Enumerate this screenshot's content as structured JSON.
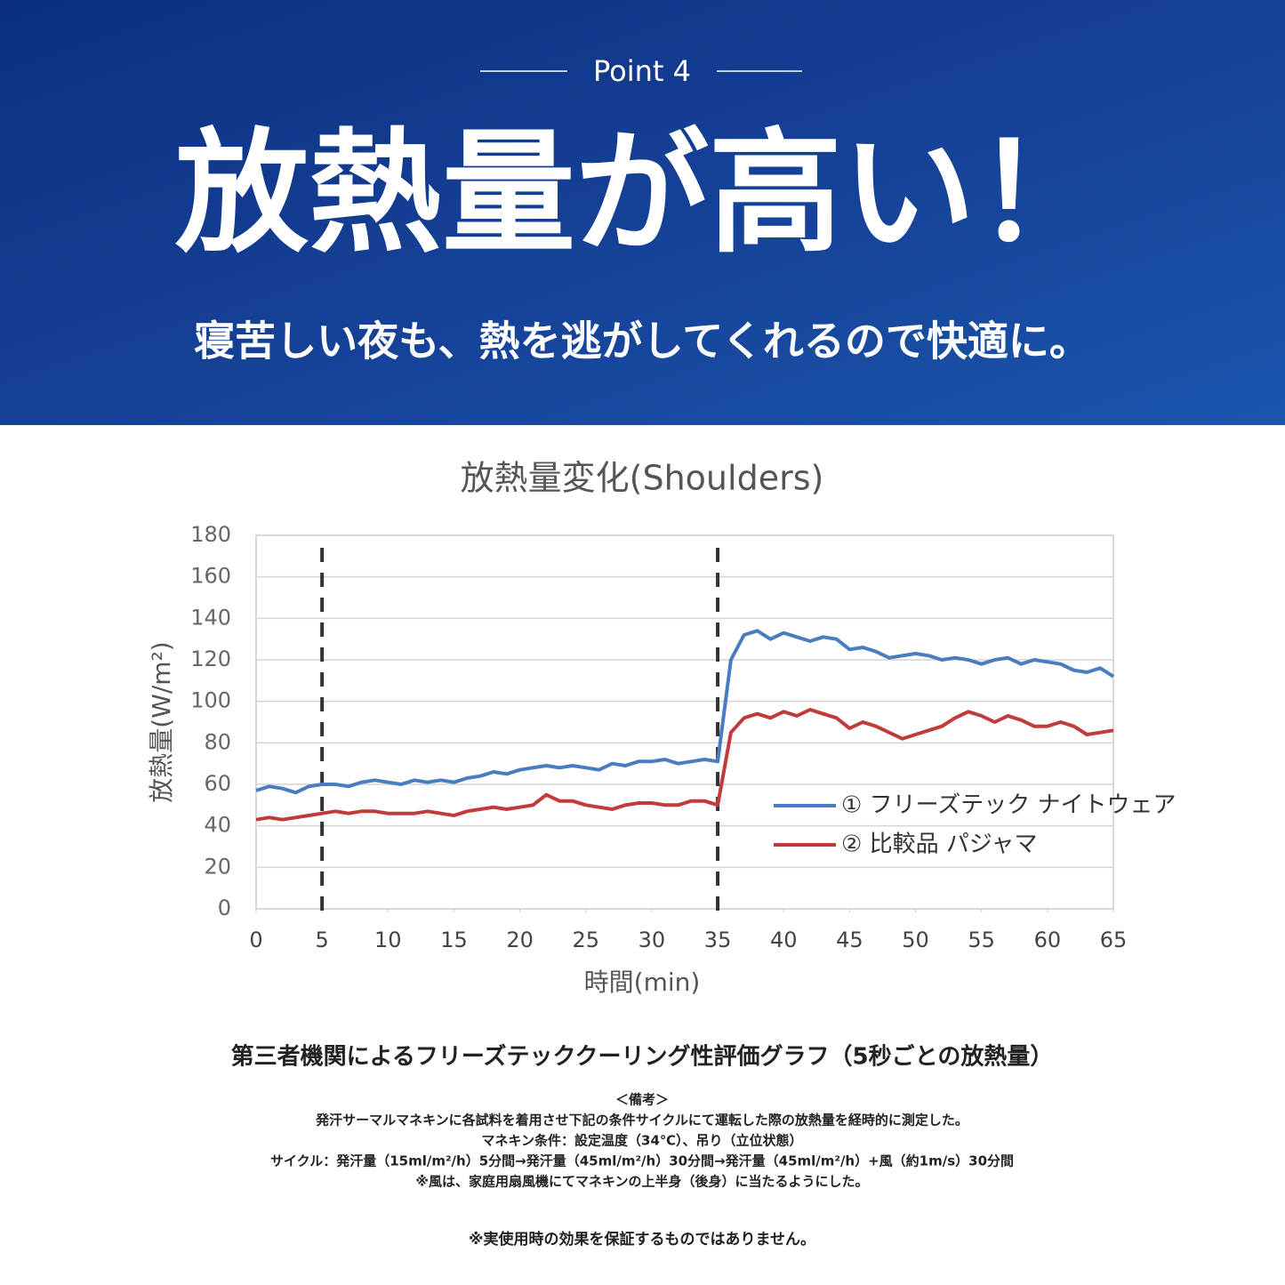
{
  "header": {
    "kicker": "Point 4",
    "title": "放熱量が高い！",
    "subtitle": "寝苦しい夜も、熱を逃がしてくれるので快適に。"
  },
  "chart_data": {
    "type": "line",
    "title": "放熱量変化(Shoulders)",
    "x_label": "時間(min)",
    "y_label": "放熱量(W/m²)",
    "x": [
      0,
      1,
      2,
      3,
      4,
      5,
      6,
      7,
      8,
      9,
      10,
      11,
      12,
      13,
      14,
      15,
      16,
      17,
      18,
      19,
      20,
      21,
      22,
      23,
      24,
      25,
      26,
      27,
      28,
      29,
      30,
      31,
      32,
      33,
      34,
      35,
      36,
      37,
      38,
      39,
      40,
      41,
      42,
      43,
      44,
      45,
      46,
      47,
      48,
      49,
      50,
      51,
      52,
      53,
      54,
      55,
      56,
      57,
      58,
      59,
      60,
      61,
      62,
      63,
      64,
      65
    ],
    "series": [
      {
        "name": "① フリーズテック ナイトウェア",
        "color": "#4a7cc0",
        "values": [
          57,
          59,
          58,
          56,
          59,
          60,
          60,
          59,
          61,
          62,
          61,
          60,
          62,
          61,
          62,
          61,
          63,
          64,
          66,
          65,
          67,
          68,
          69,
          68,
          69,
          68,
          67,
          70,
          69,
          71,
          71,
          72,
          70,
          71,
          72,
          71,
          120,
          132,
          134,
          130,
          133,
          131,
          129,
          131,
          130,
          125,
          126,
          124,
          121,
          122,
          123,
          122,
          120,
          121,
          120,
          118,
          120,
          121,
          118,
          120,
          119,
          118,
          115,
          114,
          116,
          112
        ]
      },
      {
        "name": "② 比較品 パジャマ",
        "color": "#c23b3b",
        "values": [
          43,
          44,
          43,
          44,
          45,
          46,
          47,
          46,
          47,
          47,
          46,
          46,
          46,
          47,
          46,
          45,
          47,
          48,
          49,
          48,
          49,
          50,
          55,
          52,
          52,
          50,
          49,
          48,
          50,
          51,
          51,
          50,
          50,
          52,
          52,
          50,
          85,
          92,
          94,
          92,
          95,
          93,
          96,
          94,
          92,
          87,
          90,
          88,
          85,
          82,
          84,
          86,
          88,
          92,
          95,
          93,
          90,
          93,
          91,
          88,
          88,
          90,
          88,
          84,
          85,
          86
        ]
      }
    ],
    "vlines": [
      5,
      35
    ],
    "xlim": [
      0,
      65
    ],
    "xticks": [
      0,
      5,
      10,
      15,
      20,
      25,
      30,
      35,
      40,
      45,
      50,
      55,
      60,
      65
    ],
    "ylim": [
      0,
      180
    ],
    "yticks": [
      0,
      20,
      40,
      60,
      80,
      100,
      120,
      140,
      160,
      180
    ],
    "grid": true,
    "legend": "right"
  },
  "notes": {
    "caption": "第三者機関によるフリーズテッククーリング性評価グラフ（5秒ごとの放熱量）",
    "lines": [
      "＜備考＞",
      "発汗サーマルマネキンに各試料を着用させ下記の条件サイクルにて運転した際の放熱量を経時的に測定した。",
      "マネキン条件：設定温度（34℃）、吊り（立位状態）",
      "サイクル：発汗量（15ml/m²/h）5分間→発汗量（45ml/m²/h）30分間→発汗量（45ml/m²/h）+風（約1m/s）30分間",
      "※風は、家庭用扇風機にてマネキンの上半身（後身）に当たるようにした。"
    ],
    "disclaimer": "※実使用時の効果を保証するものではありません。"
  }
}
